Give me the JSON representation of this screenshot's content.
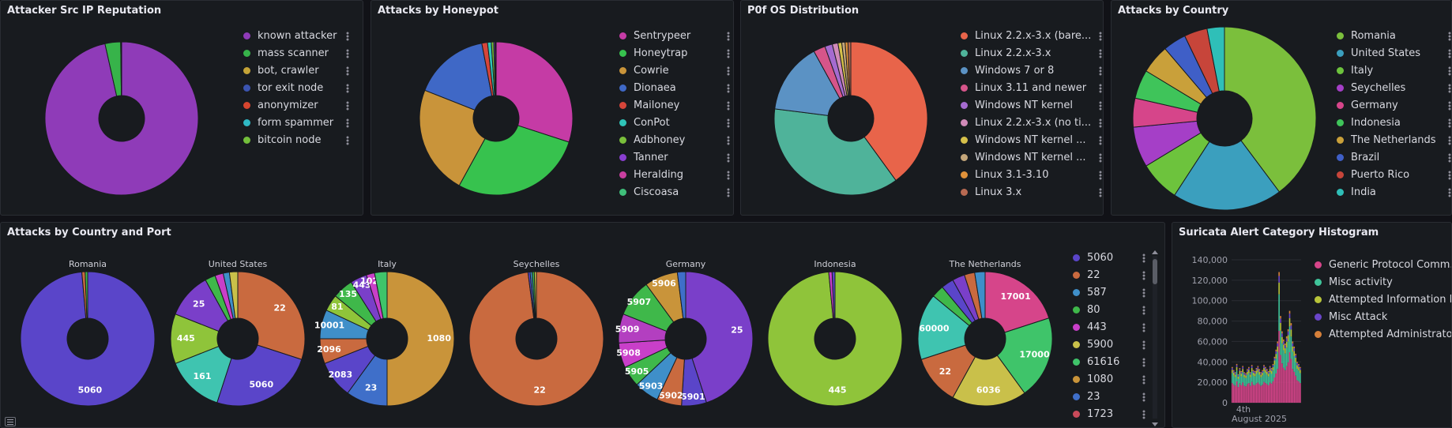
{
  "panels": {
    "reputation": {
      "title": "Attacker Src IP Reputation"
    },
    "honeypot": {
      "title": "Attacks by Honeypot"
    },
    "os": {
      "title": "P0f OS Distribution"
    },
    "country": {
      "title": "Attacks by Country"
    },
    "country_port": {
      "title": "Attacks by Country and Port"
    },
    "suricata": {
      "title": "Suricata Alert Category Histogram"
    }
  },
  "chart_data": [
    {
      "id": "reputation",
      "type": "pie",
      "donut": true,
      "legend": [
        {
          "name": "known attacker",
          "color": "#8f3bb8",
          "value": 96.5
        },
        {
          "name": "mass scanner",
          "color": "#37b34a",
          "value": 3.3
        },
        {
          "name": "bot, crawler",
          "color": "#c4a337",
          "value": 0.1
        },
        {
          "name": "tor exit node",
          "color": "#3b54b0",
          "value": 0.05
        },
        {
          "name": "anonymizer",
          "color": "#d6452f",
          "value": 0.03
        },
        {
          "name": "form spammer",
          "color": "#2fb8c4",
          "value": 0.01
        },
        {
          "name": "bitcoin node",
          "color": "#73bf3b",
          "value": 0.01
        }
      ]
    },
    {
      "id": "honeypot",
      "type": "pie",
      "donut": true,
      "legend": [
        {
          "name": "Sentrypeer",
          "color": "#c53ba5",
          "value": 30
        },
        {
          "name": "Honeytrap",
          "color": "#37c24e",
          "value": 28
        },
        {
          "name": "Cowrie",
          "color": "#c9943a",
          "value": 23
        },
        {
          "name": "Dionaea",
          "color": "#3f68c6",
          "value": 16
        },
        {
          "name": "Mailoney",
          "color": "#d6453a",
          "value": 1.2
        },
        {
          "name": "ConPot",
          "color": "#2fc4b8",
          "value": 0.8
        },
        {
          "name": "Adbhoney",
          "color": "#7abf3b",
          "value": 0.5
        },
        {
          "name": "Tanner",
          "color": "#8a3fd0",
          "value": 0.3
        },
        {
          "name": "Heralding",
          "color": "#c93fa0",
          "value": 0.1
        },
        {
          "name": "Ciscoasa",
          "color": "#3fbf7a",
          "value": 0.1
        }
      ]
    },
    {
      "id": "os",
      "type": "pie",
      "donut": true,
      "legend": [
        {
          "name": "Linux 2.2.x-3.x (bare...",
          "color": "#e8644a",
          "value": 40
        },
        {
          "name": "Linux 2.2.x-3.x",
          "color": "#4fb39a",
          "value": 37
        },
        {
          "name": "Windows 7 or 8",
          "color": "#5b92c4",
          "value": 15
        },
        {
          "name": "Linux 3.11 and newer",
          "color": "#d6558a",
          "value": 2.5
        },
        {
          "name": "Windows NT kernel",
          "color": "#a56bd0",
          "value": 1.6
        },
        {
          "name": "Linux 2.2.x-3.x (no ti...",
          "color": "#d08ab8",
          "value": 1.2
        },
        {
          "name": "Windows NT kernel ...",
          "color": "#d6c04a",
          "value": 0.8
        },
        {
          "name": "Windows NT kernel ...",
          "color": "#c4a67a",
          "value": 0.7
        },
        {
          "name": "Linux 3.1-3.10",
          "color": "#e0923a",
          "value": 0.6
        },
        {
          "name": "Linux 3.x",
          "color": "#b86a52",
          "value": 0.6
        }
      ]
    },
    {
      "id": "country",
      "type": "pie",
      "donut": true,
      "legend": [
        {
          "name": "Romania",
          "color": "#7bbf3c",
          "value": 39
        },
        {
          "name": "United States",
          "color": "#3b9fbe",
          "value": 19
        },
        {
          "name": "Italy",
          "color": "#6dc33d",
          "value": 7
        },
        {
          "name": "Seychelles",
          "color": "#a53fc7",
          "value": 7
        },
        {
          "name": "Germany",
          "color": "#d6458a",
          "value": 5
        },
        {
          "name": "Indonesia",
          "color": "#3fc45a",
          "value": 5
        },
        {
          "name": "The Netherlands",
          "color": "#c9a03a",
          "value": 5
        },
        {
          "name": "Brazil",
          "color": "#3f5fc7",
          "value": 4
        },
        {
          "name": "Puerto Rico",
          "color": "#c7453a",
          "value": 4
        },
        {
          "name": "India",
          "color": "#2fbfb8",
          "value": 3
        }
      ]
    },
    {
      "id": "country_port",
      "type": "pie",
      "donut": true,
      "legend": [
        {
          "name": "5060",
          "color": "#5a45c9"
        },
        {
          "name": "22",
          "color": "#c96a3f"
        },
        {
          "name": "587",
          "color": "#3f8fc9"
        },
        {
          "name": "80",
          "color": "#3fb84a"
        },
        {
          "name": "443",
          "color": "#c93fc9"
        },
        {
          "name": "5900",
          "color": "#c9c04a"
        },
        {
          "name": "61616",
          "color": "#3fc46a"
        },
        {
          "name": "1080",
          "color": "#c9943a"
        },
        {
          "name": "23",
          "color": "#3f6fc9"
        },
        {
          "name": "1723",
          "color": "#c94a5a"
        }
      ],
      "pies": [
        {
          "title": "Romania",
          "slices": [
            {
              "label": "5060",
              "value": 98.6,
              "color": "#5a45c9"
            },
            {
              "label": "",
              "value": 0.8,
              "color": "#c96a3f"
            },
            {
              "label": "",
              "value": 0.6,
              "color": "#3fb84a"
            }
          ]
        },
        {
          "title": "United States",
          "slices": [
            {
              "label": "22",
              "value": 30,
              "color": "#c96a3f"
            },
            {
              "label": "5060",
              "value": 25,
              "color": "#5a45c9"
            },
            {
              "label": "161",
              "value": 14,
              "color": "#3fc4b0"
            },
            {
              "label": "445",
              "value": 12,
              "color": "#8fc43a"
            },
            {
              "label": "25",
              "value": 11,
              "color": "#7a3fc9"
            },
            {
              "label": "",
              "value": 2.5,
              "color": "#3fb84a"
            },
            {
              "label": "",
              "value": 2,
              "color": "#c93fc9"
            },
            {
              "label": "",
              "value": 1.5,
              "color": "#3f8fc9"
            },
            {
              "label": "",
              "value": 2,
              "color": "#c9c04a"
            }
          ]
        },
        {
          "title": "Italy",
          "slices": [
            {
              "label": "1080",
              "value": 50,
              "color": "#c9943a"
            },
            {
              "label": "23",
              "value": 10,
              "color": "#3f6fc9"
            },
            {
              "label": "2083",
              "value": 9,
              "color": "#5a45c9"
            },
            {
              "label": "2096",
              "value": 6,
              "color": "#c96a3f"
            },
            {
              "label": "10001",
              "value": 7,
              "color": "#3f8fc9"
            },
            {
              "label": "81",
              "value": 4,
              "color": "#8fc43a"
            },
            {
              "label": "135",
              "value": 5,
              "color": "#3fb84a"
            },
            {
              "label": "443",
              "value": 4,
              "color": "#7a3fc9"
            },
            {
              "label": "1028",
              "value": 2,
              "color": "#c93fc9"
            },
            {
              "label": "",
              "value": 3,
              "color": "#3fc46a"
            }
          ]
        },
        {
          "title": "Seychelles",
          "slices": [
            {
              "label": "22",
              "value": 98,
              "color": "#c96a3f"
            },
            {
              "label": "",
              "value": 0.5,
              "color": "#5a45c9"
            },
            {
              "label": "",
              "value": 0.5,
              "color": "#3f8fc9"
            },
            {
              "label": "",
              "value": 0.5,
              "color": "#3fb84a"
            },
            {
              "label": "",
              "value": 0.5,
              "color": "#c9c04a"
            }
          ]
        },
        {
          "title": "Germany",
          "slices": [
            {
              "label": "25",
              "value": 45,
              "color": "#7a3fc9"
            },
            {
              "label": "5901",
              "value": 6,
              "color": "#5a45c9"
            },
            {
              "label": "5902",
              "value": 6,
              "color": "#c96a3f"
            },
            {
              "label": "5903",
              "value": 6,
              "color": "#3f8fc9"
            },
            {
              "label": "5905",
              "value": 5,
              "color": "#3fb84a"
            },
            {
              "label": "5908",
              "value": 6,
              "color": "#c93fc9"
            },
            {
              "label": "5909",
              "value": 7,
              "color": "#b33fc0"
            },
            {
              "label": "5907",
              "value": 9,
              "color": "#3fb84a"
            },
            {
              "label": "5906",
              "value": 8,
              "color": "#c9943a"
            },
            {
              "label": "",
              "value": 2,
              "color": "#3f6fc9"
            }
          ]
        },
        {
          "title": "Indonesia",
          "slices": [
            {
              "label": "445",
              "value": 98.5,
              "color": "#8fc43a"
            },
            {
              "label": "",
              "value": 0.8,
              "color": "#c93fc9"
            },
            {
              "label": "",
              "value": 0.7,
              "color": "#5a45c9"
            }
          ]
        },
        {
          "title": "The Netherlands",
          "slices": [
            {
              "label": "17001",
              "value": 20,
              "color": "#d6458a"
            },
            {
              "label": "17000",
              "value": 20,
              "color": "#3fc46a"
            },
            {
              "label": "6036",
              "value": 18,
              "color": "#c9c04a"
            },
            {
              "label": "22",
              "value": 12,
              "color": "#c96a3f"
            },
            {
              "label": "60000",
              "value": 16,
              "color": "#3fc4b0"
            },
            {
              "label": "",
              "value": 3,
              "color": "#3fb84a"
            },
            {
              "label": "",
              "value": 3,
              "color": "#5a45c9"
            },
            {
              "label": "",
              "value": 3,
              "color": "#7a3fc9"
            },
            {
              "label": "",
              "value": 2.5,
              "color": "#c96a3f"
            },
            {
              "label": "",
              "value": 2.5,
              "color": "#3f8fc9"
            }
          ]
        }
      ]
    },
    {
      "id": "suricata",
      "type": "bar",
      "stacked": true,
      "yticks": [
        "140,000",
        "120,000",
        "100,000",
        "80,000",
        "60,000",
        "40,000",
        "20,000",
        "0"
      ],
      "ylim": [
        0,
        140000
      ],
      "ymajor": [
        140000,
        120000,
        100000,
        80000,
        60000,
        40000,
        20000,
        0
      ],
      "xticks": [
        "4th",
        "August 2025"
      ],
      "legend": [
        {
          "name": "Generic Protocol Comm...",
          "color": "#d6458a"
        },
        {
          "name": "Misc activity",
          "color": "#3fc49a"
        },
        {
          "name": "Attempted Information L...",
          "color": "#b8c43a"
        },
        {
          "name": "Misc Attack",
          "color": "#6a45c9"
        },
        {
          "name": "Attempted Administrato...",
          "color": "#d6803a"
        }
      ],
      "series_totals": [
        35000,
        32000,
        30000,
        38000,
        28000,
        34000,
        31000,
        36000,
        30000,
        29000,
        33000,
        35000,
        30000,
        37000,
        32000,
        31000,
        34000,
        36000,
        33000,
        30000,
        32000,
        37000,
        35000,
        33000,
        31000,
        36000,
        34000,
        38000,
        45000,
        52000,
        60000,
        128000,
        85000,
        70000,
        62000,
        58000,
        65000,
        72000,
        90000,
        78000,
        60000,
        55000,
        48000,
        40000,
        38000,
        35000
      ]
    }
  ]
}
